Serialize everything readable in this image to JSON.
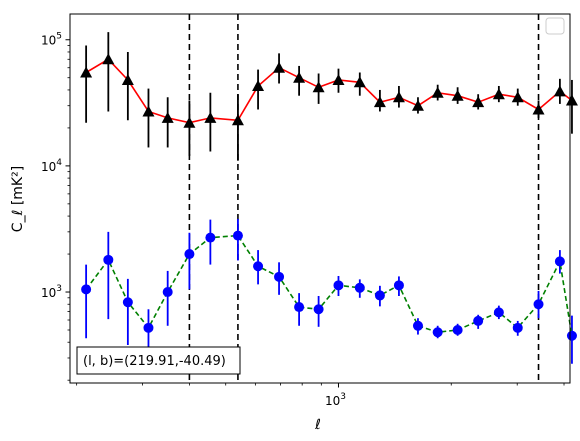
{
  "chart_data": {
    "type": "line",
    "xlabel": "ℓ",
    "ylabel": "C_ℓ  [mK²]",
    "x_scale": "log",
    "y_scale": "log",
    "xlim": [
      192,
      4150
    ],
    "ylim": [
      190,
      160000
    ],
    "x_ticks": [
      {
        "value": 1000,
        "base": "10",
        "exp": "3"
      }
    ],
    "y_ticks": [
      {
        "value": 1000,
        "base": "10",
        "exp": "3"
      },
      {
        "value": 10000,
        "base": "10",
        "exp": "4"
      },
      {
        "value": 100000,
        "base": "10",
        "exp": "5"
      }
    ],
    "vlines": [
      400,
      539,
      3420
    ],
    "annotation": "(l, b)=(219.91,-40.49)",
    "legend": "top-right",
    "grid": false,
    "series": [
      {
        "color": "#ff0000",
        "marker": "triangle",
        "marker_color": "#000000",
        "error_color": "#000000",
        "line_style": "solid",
        "x": [
          212,
          243,
          274,
          311,
          350,
          400,
          455,
          539,
          610,
          694,
          785,
          885,
          1000,
          1140,
          1290,
          1450,
          1630,
          1840,
          2080,
          2360,
          2680,
          3010,
          3420,
          3900,
          4200
        ],
        "y": [
          55000,
          70000,
          48000,
          27000,
          24000,
          22000,
          24000,
          23000,
          43000,
          60000,
          50000,
          42000,
          48000,
          46000,
          32000,
          35000,
          30000,
          38000,
          36000,
          32000,
          37000,
          35000,
          28000,
          39000,
          33000
        ],
        "y_low": [
          22000,
          27000,
          23000,
          14000,
          14000,
          12000,
          13000,
          11000,
          28000,
          45000,
          36000,
          31000,
          38000,
          36000,
          27000,
          29000,
          26000,
          33000,
          31000,
          28000,
          32000,
          30000,
          24000,
          31000,
          18000
        ],
        "y_high": [
          90000,
          115000,
          80000,
          41000,
          35000,
          33000,
          38000,
          37000,
          58000,
          78000,
          62000,
          54000,
          59000,
          55000,
          40000,
          43000,
          35000,
          44000,
          42000,
          37000,
          43000,
          41000,
          33000,
          49000,
          48000
        ]
      },
      {
        "color": "#008000",
        "marker": "circle",
        "marker_color": "#0000ff",
        "error_color": "#0000ff",
        "line_style": "dashed",
        "x": [
          212,
          243,
          274,
          311,
          350,
          400,
          455,
          539,
          610,
          694,
          785,
          885,
          1000,
          1140,
          1290,
          1450,
          1630,
          1840,
          2080,
          2360,
          2680,
          3010,
          3420,
          3900,
          4200
        ],
        "y": [
          1050,
          1800,
          830,
          520,
          1000,
          2000,
          2700,
          2800,
          1600,
          1320,
          760,
          730,
          1130,
          1080,
          940,
          1130,
          540,
          480,
          500,
          590,
          690,
          520,
          800,
          1750,
          450
        ],
        "y_low": [
          430,
          610,
          380,
          320,
          540,
          1050,
          1650,
          1780,
          1150,
          950,
          540,
          530,
          930,
          900,
          770,
          930,
          460,
          430,
          450,
          510,
          610,
          450,
          620,
          1400,
          270
        ],
        "y_high": [
          1650,
          3000,
          1270,
          730,
          1470,
          2950,
          3750,
          3800,
          2150,
          1720,
          980,
          930,
          1340,
          1260,
          1120,
          1330,
          620,
          540,
          560,
          660,
          780,
          590,
          1020,
          2150,
          650
        ]
      }
    ]
  }
}
